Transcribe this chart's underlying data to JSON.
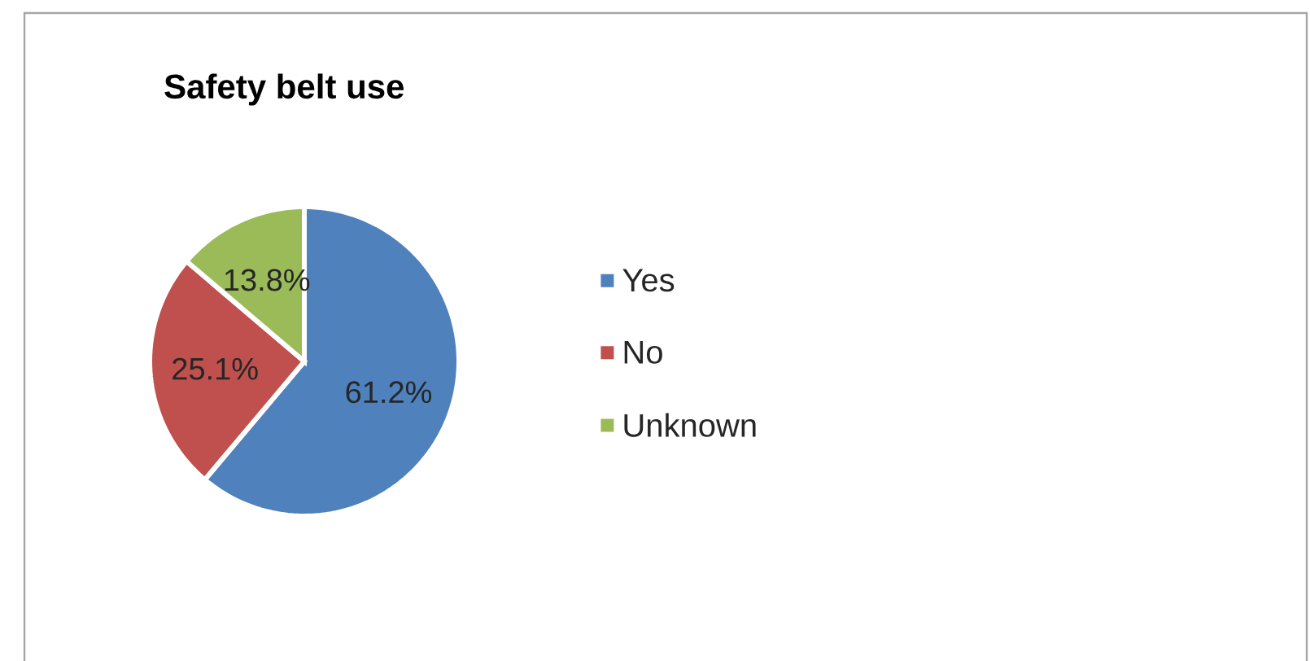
{
  "chart_data": {
    "type": "pie",
    "title": "Safety belt use",
    "categories": [
      "Yes",
      "No",
      "Unknown"
    ],
    "values": [
      61.2,
      25.1,
      13.8
    ],
    "colors": [
      "#4f81bd",
      "#c0504d",
      "#9bbb59"
    ],
    "value_labels": [
      "61.2%",
      "25.1%",
      "13.8%"
    ],
    "legend": "right"
  }
}
